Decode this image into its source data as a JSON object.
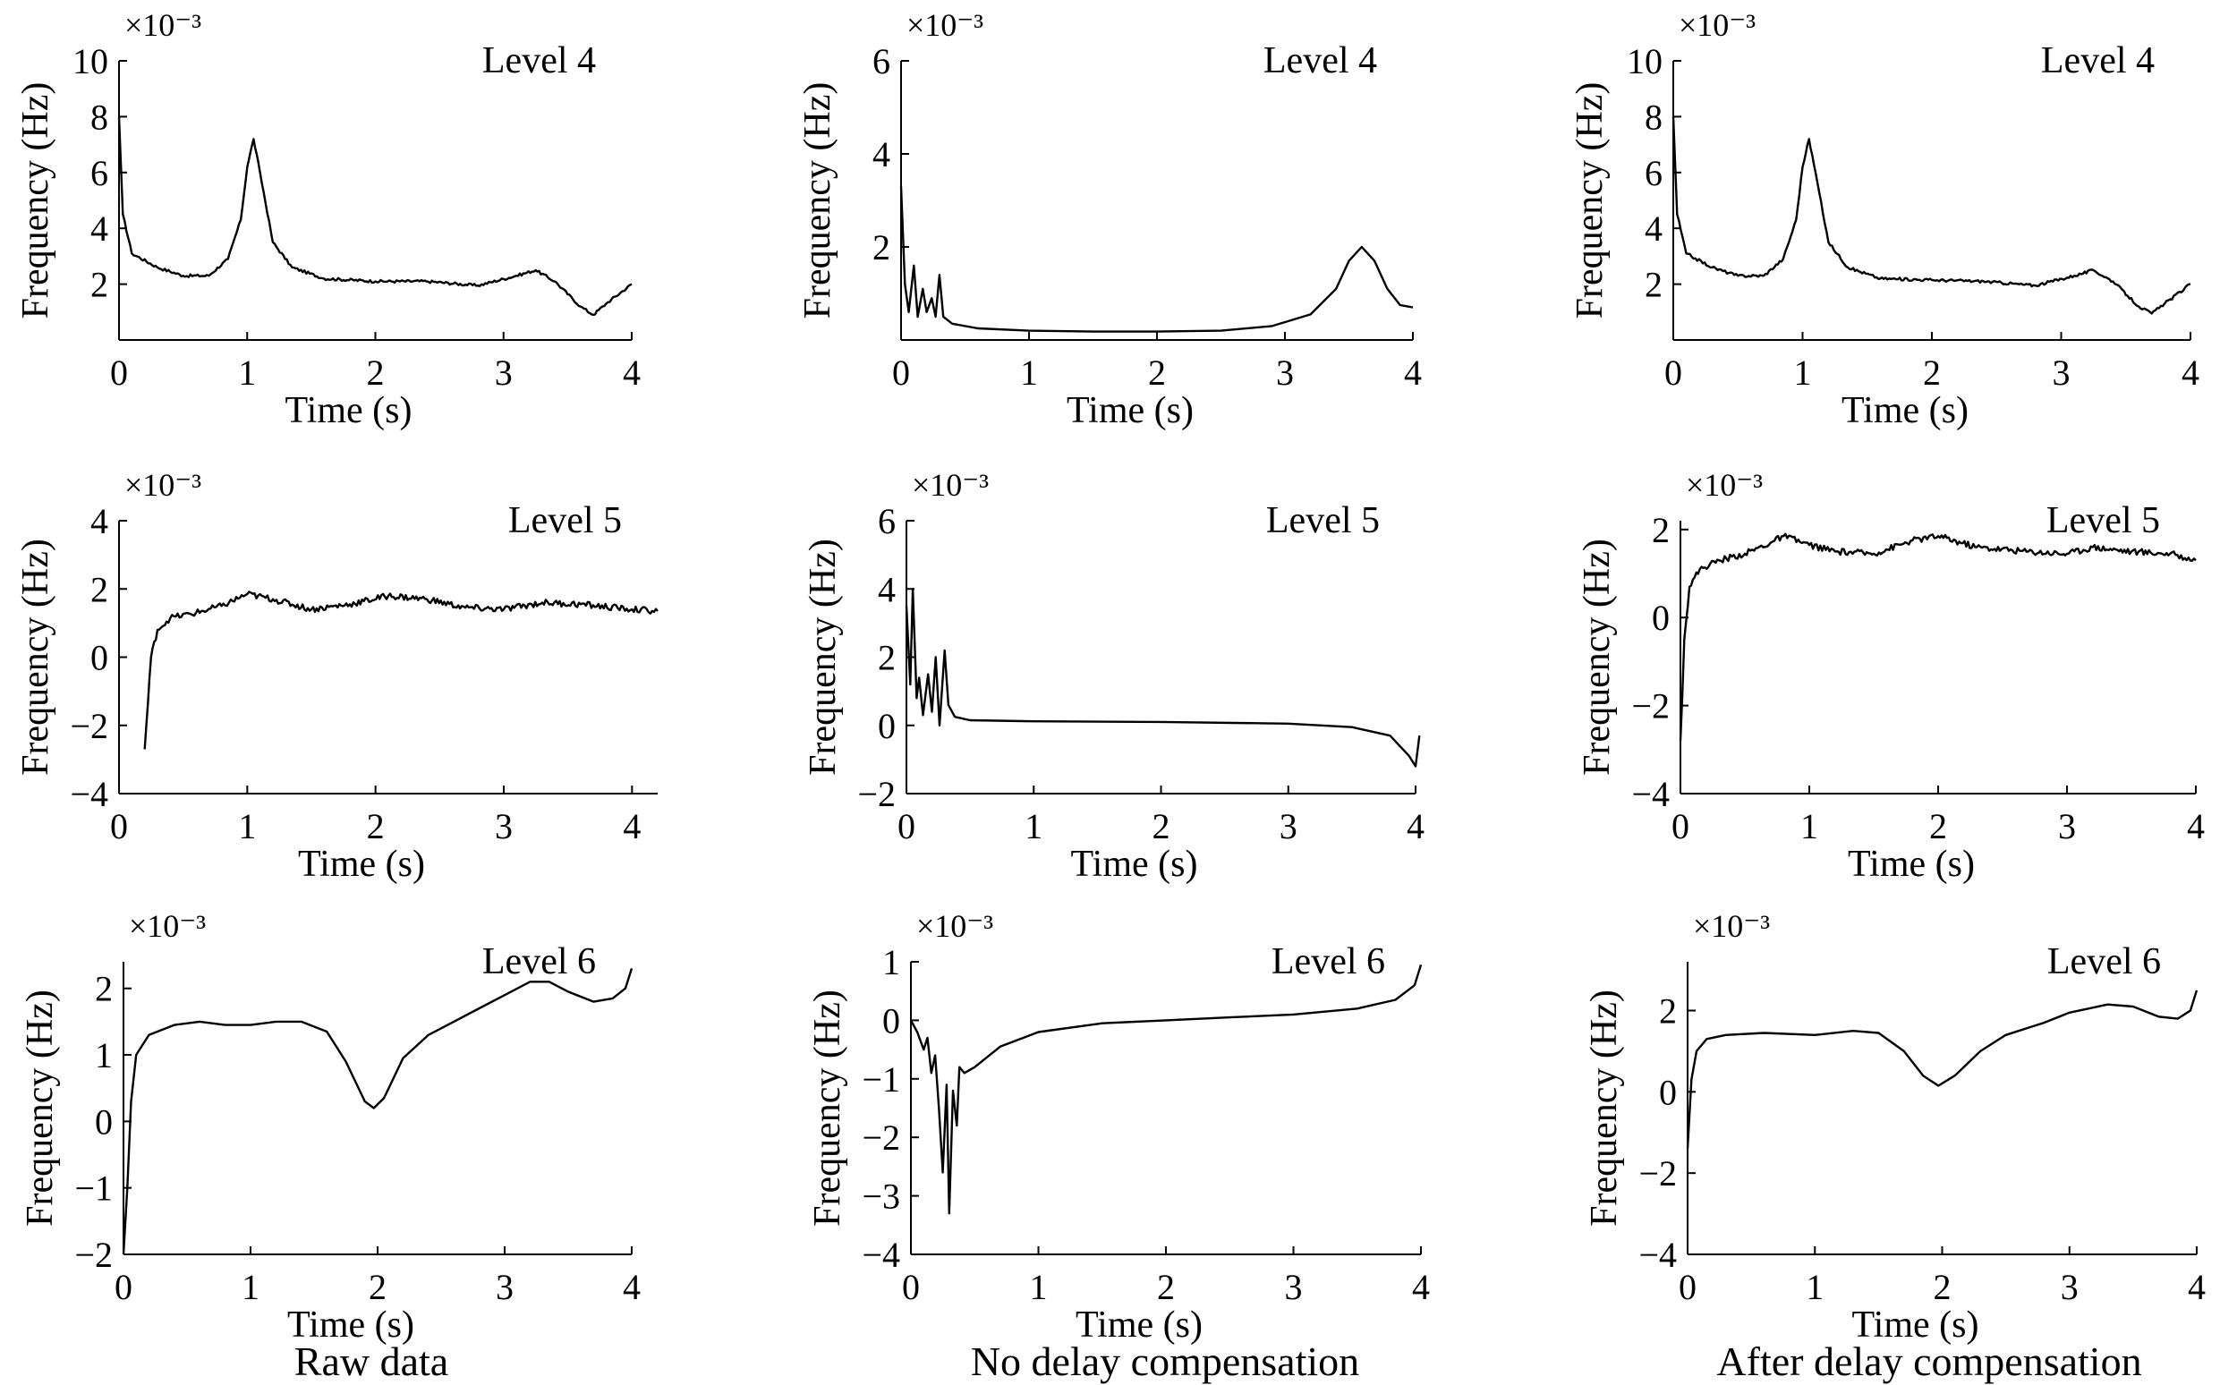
{
  "chart_data": [
    {
      "type": "line",
      "panel": "raw-l4",
      "label": "Level 4",
      "exponent_label": "×10⁻³",
      "xlabel": "Time (s)",
      "ylabel": "Frequency (Hz)",
      "xlim": [
        0,
        4
      ],
      "ylim": [
        0,
        10
      ],
      "xticks": [
        "0",
        "1",
        "2",
        "3",
        "4"
      ],
      "yticks": [
        "2",
        "4",
        "6",
        "8",
        "10"
      ],
      "noise": 0.03,
      "series": [
        {
          "points": [
            [
              0,
              8
            ],
            [
              0.03,
              4.5
            ],
            [
              0.1,
              3.1
            ],
            [
              0.3,
              2.6
            ],
            [
              0.5,
              2.3
            ],
            [
              0.7,
              2.3
            ],
            [
              0.85,
              2.9
            ],
            [
              0.95,
              4.3
            ],
            [
              1.0,
              6.2
            ],
            [
              1.05,
              7.2
            ],
            [
              1.1,
              6.0
            ],
            [
              1.2,
              3.5
            ],
            [
              1.35,
              2.6
            ],
            [
              1.6,
              2.2
            ],
            [
              2.0,
              2.1
            ],
            [
              2.4,
              2.1
            ],
            [
              2.8,
              1.95
            ],
            [
              3.1,
              2.3
            ],
            [
              3.25,
              2.5
            ],
            [
              3.4,
              2.1
            ],
            [
              3.6,
              1.2
            ],
            [
              3.7,
              0.9
            ],
            [
              3.8,
              1.3
            ],
            [
              4.0,
              2.0
            ]
          ]
        }
      ]
    },
    {
      "type": "line",
      "panel": "nodelay-l4",
      "label": "Level 4",
      "exponent_label": "×10⁻³",
      "xlabel": "Time (s)",
      "ylabel": "Frequency (Hz)",
      "xlim": [
        0,
        4
      ],
      "ylim": [
        0,
        6
      ],
      "xticks": [
        "0",
        "1",
        "2",
        "3",
        "4"
      ],
      "yticks": [
        "2",
        "4",
        "6"
      ],
      "noise": 0,
      "series": [
        {
          "points": [
            [
              0,
              3.3
            ],
            [
              0.03,
              1.2
            ],
            [
              0.06,
              0.6
            ],
            [
              0.1,
              1.6
            ],
            [
              0.13,
              0.5
            ],
            [
              0.17,
              1.1
            ],
            [
              0.2,
              0.6
            ],
            [
              0.24,
              0.9
            ],
            [
              0.27,
              0.5
            ],
            [
              0.3,
              1.4
            ],
            [
              0.33,
              0.5
            ],
            [
              0.4,
              0.35
            ],
            [
              0.6,
              0.25
            ],
            [
              1.0,
              0.2
            ],
            [
              1.5,
              0.18
            ],
            [
              2.0,
              0.18
            ],
            [
              2.5,
              0.2
            ],
            [
              2.9,
              0.3
            ],
            [
              3.2,
              0.55
            ],
            [
              3.4,
              1.1
            ],
            [
              3.5,
              1.7
            ],
            [
              3.6,
              2.0
            ],
            [
              3.7,
              1.7
            ],
            [
              3.8,
              1.1
            ],
            [
              3.9,
              0.75
            ],
            [
              4.0,
              0.7
            ]
          ]
        }
      ]
    },
    {
      "type": "line",
      "panel": "after-l4",
      "label": "Level 4",
      "exponent_label": "×10⁻³",
      "xlabel": "Time (s)",
      "ylabel": "Frequency (Hz)",
      "xlim": [
        0,
        4
      ],
      "ylim": [
        0,
        10
      ],
      "xticks": [
        "0",
        "1",
        "2",
        "3",
        "4"
      ],
      "yticks": [
        "2",
        "4",
        "6",
        "8",
        "10"
      ],
      "noise": 0.03,
      "series": [
        {
          "points": [
            [
              0,
              8
            ],
            [
              0.03,
              4.5
            ],
            [
              0.1,
              3.1
            ],
            [
              0.3,
              2.6
            ],
            [
              0.5,
              2.3
            ],
            [
              0.7,
              2.3
            ],
            [
              0.85,
              2.9
            ],
            [
              0.95,
              4.3
            ],
            [
              1.0,
              6.2
            ],
            [
              1.05,
              7.2
            ],
            [
              1.1,
              6.0
            ],
            [
              1.2,
              3.5
            ],
            [
              1.35,
              2.6
            ],
            [
              1.6,
              2.2
            ],
            [
              2.0,
              2.15
            ],
            [
              2.4,
              2.1
            ],
            [
              2.8,
              1.95
            ],
            [
              3.1,
              2.3
            ],
            [
              3.25,
              2.5
            ],
            [
              3.4,
              2.1
            ],
            [
              3.6,
              1.2
            ],
            [
              3.7,
              0.95
            ],
            [
              3.8,
              1.3
            ],
            [
              4.0,
              2.0
            ]
          ]
        }
      ]
    },
    {
      "type": "line",
      "panel": "raw-l5",
      "label": "Level 5",
      "exponent_label": "×10⁻³",
      "xlabel": "Time (s)",
      "ylabel": "Frequency (Hz)",
      "xlim": [
        0,
        4.2
      ],
      "ylim": [
        -4,
        4
      ],
      "xticks": [
        "0",
        "1",
        "2",
        "3",
        "4"
      ],
      "yticks": [
        "−4",
        "−2",
        "0",
        "2",
        "4"
      ],
      "noise": 0.07,
      "series": [
        {
          "points": [
            [
              0.2,
              -2.7
            ],
            [
              0.25,
              0.0
            ],
            [
              0.3,
              0.8
            ],
            [
              0.4,
              1.15
            ],
            [
              0.6,
              1.3
            ],
            [
              0.8,
              1.5
            ],
            [
              1.0,
              1.85
            ],
            [
              1.2,
              1.7
            ],
            [
              1.5,
              1.4
            ],
            [
              1.8,
              1.55
            ],
            [
              2.1,
              1.8
            ],
            [
              2.4,
              1.7
            ],
            [
              2.7,
              1.45
            ],
            [
              3.0,
              1.4
            ],
            [
              3.3,
              1.6
            ],
            [
              3.6,
              1.55
            ],
            [
              4.0,
              1.4
            ],
            [
              4.2,
              1.35
            ]
          ]
        }
      ]
    },
    {
      "type": "line",
      "panel": "nodelay-l5",
      "label": "Level 5",
      "exponent_label": "×10⁻³",
      "xlabel": "Time (s)",
      "ylabel": "Frequency (Hz)",
      "xlim": [
        0,
        4
      ],
      "ylim": [
        -2,
        6
      ],
      "xticks": [
        "0",
        "1",
        "2",
        "3",
        "4"
      ],
      "yticks": [
        "−2",
        "0",
        "2",
        "4",
        "6"
      ],
      "noise": 0,
      "series": [
        {
          "points": [
            [
              0,
              3.5
            ],
            [
              0.03,
              1.2
            ],
            [
              0.05,
              4.0
            ],
            [
              0.08,
              0.8
            ],
            [
              0.1,
              1.4
            ],
            [
              0.13,
              0.3
            ],
            [
              0.17,
              1.5
            ],
            [
              0.2,
              0.4
            ],
            [
              0.23,
              2.0
            ],
            [
              0.26,
              0.0
            ],
            [
              0.3,
              2.2
            ],
            [
              0.33,
              0.6
            ],
            [
              0.38,
              0.25
            ],
            [
              0.5,
              0.15
            ],
            [
              1.0,
              0.12
            ],
            [
              2.0,
              0.1
            ],
            [
              3.0,
              0.05
            ],
            [
              3.5,
              -0.05
            ],
            [
              3.8,
              -0.3
            ],
            [
              3.95,
              -0.9
            ],
            [
              4.0,
              -1.2
            ],
            [
              4.03,
              -0.3
            ]
          ]
        }
      ]
    },
    {
      "type": "line",
      "panel": "after-l5",
      "label": "Level 5",
      "exponent_label": "×10⁻³",
      "xlabel": "Time (s)",
      "ylabel": "Frequency (Hz)",
      "xlim": [
        0,
        4
      ],
      "ylim": [
        -4,
        2.2
      ],
      "xticks": [
        "0",
        "1",
        "2",
        "3",
        "4"
      ],
      "yticks": [
        "−4",
        "−2",
        "0",
        "2"
      ],
      "noise": 0.07,
      "series": [
        {
          "points": [
            [
              0.0,
              -2.8
            ],
            [
              0.03,
              -0.5
            ],
            [
              0.07,
              0.7
            ],
            [
              0.15,
              1.1
            ],
            [
              0.3,
              1.3
            ],
            [
              0.5,
              1.45
            ],
            [
              0.7,
              1.7
            ],
            [
              0.8,
              1.85
            ],
            [
              1.0,
              1.65
            ],
            [
              1.2,
              1.5
            ],
            [
              1.5,
              1.45
            ],
            [
              1.8,
              1.75
            ],
            [
              2.0,
              1.85
            ],
            [
              2.3,
              1.6
            ],
            [
              2.7,
              1.5
            ],
            [
              3.0,
              1.45
            ],
            [
              3.2,
              1.6
            ],
            [
              3.5,
              1.5
            ],
            [
              3.8,
              1.45
            ],
            [
              4.0,
              1.3
            ]
          ]
        }
      ]
    },
    {
      "type": "line",
      "panel": "raw-l6",
      "label": "Level 6",
      "exponent_label": "×10⁻³",
      "xlabel": "Time (s)",
      "ylabel": "Frequency (Hz)",
      "xlim": [
        0,
        4
      ],
      "ylim": [
        -2,
        2.4
      ],
      "xticks": [
        "0",
        "1",
        "2",
        "3",
        "4"
      ],
      "yticks": [
        "−2",
        "−1",
        "0",
        "1",
        "2"
      ],
      "noise": 0,
      "series": [
        {
          "points": [
            [
              0.0,
              -2.0
            ],
            [
              0.03,
              -1.0
            ],
            [
              0.06,
              0.3
            ],
            [
              0.1,
              1.0
            ],
            [
              0.2,
              1.3
            ],
            [
              0.4,
              1.45
            ],
            [
              0.6,
              1.5
            ],
            [
              0.8,
              1.45
            ],
            [
              1.0,
              1.45
            ],
            [
              1.2,
              1.5
            ],
            [
              1.4,
              1.5
            ],
            [
              1.6,
              1.35
            ],
            [
              1.75,
              0.9
            ],
            [
              1.9,
              0.3
            ],
            [
              1.97,
              0.2
            ],
            [
              2.05,
              0.35
            ],
            [
              2.2,
              0.95
            ],
            [
              2.4,
              1.3
            ],
            [
              2.6,
              1.5
            ],
            [
              2.8,
              1.7
            ],
            [
              3.0,
              1.9
            ],
            [
              3.2,
              2.1
            ],
            [
              3.35,
              2.1
            ],
            [
              3.5,
              1.95
            ],
            [
              3.7,
              1.8
            ],
            [
              3.85,
              1.85
            ],
            [
              3.95,
              2.0
            ],
            [
              4.0,
              2.3
            ]
          ]
        }
      ]
    },
    {
      "type": "line",
      "panel": "nodelay-l6",
      "label": "Level 6",
      "exponent_label": "×10⁻³",
      "xlabel": "Time (s)",
      "ylabel": "Frequency (Hz)",
      "xlim": [
        0,
        4
      ],
      "ylim": [
        -4,
        1
      ],
      "xticks": [
        "0",
        "1",
        "2",
        "3",
        "4"
      ],
      "yticks": [
        "−4",
        "−3",
        "−2",
        "−1",
        "0",
        "1"
      ],
      "noise": 0,
      "series": [
        {
          "points": [
            [
              0.0,
              0.0
            ],
            [
              0.05,
              -0.2
            ],
            [
              0.1,
              -0.5
            ],
            [
              0.13,
              -0.3
            ],
            [
              0.16,
              -0.9
            ],
            [
              0.19,
              -0.6
            ],
            [
              0.22,
              -1.5
            ],
            [
              0.25,
              -2.6
            ],
            [
              0.28,
              -1.1
            ],
            [
              0.3,
              -3.3
            ],
            [
              0.33,
              -1.2
            ],
            [
              0.36,
              -1.8
            ],
            [
              0.38,
              -0.8
            ],
            [
              0.42,
              -0.9
            ],
            [
              0.5,
              -0.8
            ],
            [
              0.7,
              -0.45
            ],
            [
              1.0,
              -0.2
            ],
            [
              1.5,
              -0.05
            ],
            [
              2.0,
              0.0
            ],
            [
              2.5,
              0.05
            ],
            [
              3.0,
              0.1
            ],
            [
              3.5,
              0.2
            ],
            [
              3.8,
              0.35
            ],
            [
              3.95,
              0.6
            ],
            [
              4.0,
              0.95
            ]
          ]
        }
      ]
    },
    {
      "type": "line",
      "panel": "after-l6",
      "label": "Level 6",
      "exponent_label": "×10⁻³",
      "xlabel": "Time (s)",
      "ylabel": "Frequency (Hz)",
      "xlim": [
        0,
        4
      ],
      "ylim": [
        -4,
        3.2
      ],
      "xticks": [
        "0",
        "1",
        "2",
        "3",
        "4"
      ],
      "yticks": [
        "−4",
        "−2",
        "0",
        "2"
      ],
      "noise": 0,
      "series": [
        {
          "points": [
            [
              0.0,
              -1.4
            ],
            [
              0.03,
              0.3
            ],
            [
              0.07,
              1.0
            ],
            [
              0.15,
              1.3
            ],
            [
              0.3,
              1.4
            ],
            [
              0.6,
              1.45
            ],
            [
              1.0,
              1.4
            ],
            [
              1.3,
              1.5
            ],
            [
              1.5,
              1.45
            ],
            [
              1.7,
              1.0
            ],
            [
              1.85,
              0.4
            ],
            [
              1.97,
              0.15
            ],
            [
              2.1,
              0.4
            ],
            [
              2.3,
              1.0
            ],
            [
              2.5,
              1.4
            ],
            [
              2.8,
              1.7
            ],
            [
              3.0,
              1.95
            ],
            [
              3.3,
              2.15
            ],
            [
              3.5,
              2.1
            ],
            [
              3.7,
              1.85
            ],
            [
              3.85,
              1.8
            ],
            [
              3.95,
              2.0
            ],
            [
              4.0,
              2.5
            ]
          ]
        }
      ]
    }
  ],
  "captions": {
    "raw": "Raw data",
    "nodelay": "No delay compensation",
    "after": "After delay compensation"
  }
}
